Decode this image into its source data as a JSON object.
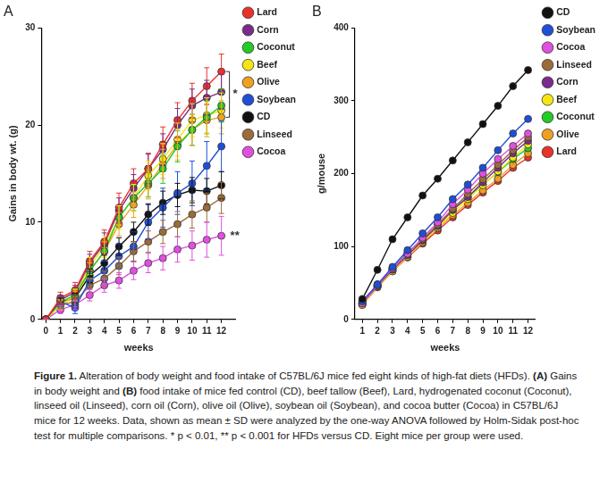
{
  "chart_data": [
    {
      "type": "line",
      "title": "A",
      "x_label": "weeks",
      "y_label": "Gains in body wt. (g)",
      "x": [
        0,
        1,
        2,
        3,
        4,
        5,
        6,
        7,
        8,
        9,
        10,
        11,
        12
      ],
      "xlim": [
        -0.3,
        13
      ],
      "xticks": [
        0,
        1,
        2,
        3,
        4,
        5,
        6,
        7,
        8,
        9,
        10,
        11,
        12
      ],
      "ylim": [
        0,
        30
      ],
      "yticks": [
        0,
        10,
        20,
        30
      ],
      "grid": false,
      "legend": "right",
      "marker": "circle",
      "series": [
        {
          "name": "Lard",
          "color": "#e8322a",
          "values": [
            0,
            2.2,
            3.0,
            6.0,
            8.0,
            11.5,
            14.0,
            15.5,
            18.0,
            20.5,
            22.5,
            24.0,
            25.5
          ],
          "errors": [
            0,
            0.6,
            0.8,
            1.0,
            1.2,
            1.5,
            1.5,
            1.6,
            1.8,
            1.8,
            1.8,
            1.9,
            1.8
          ]
        },
        {
          "name": "Corn",
          "color": "#7b2b8e",
          "values": [
            0,
            2.0,
            2.8,
            5.8,
            7.8,
            11.2,
            13.5,
            15.5,
            17.5,
            20.0,
            22.0,
            22.8,
            23.4
          ],
          "errors": [
            0,
            0.5,
            0.7,
            0.9,
            1.1,
            1.3,
            1.4,
            1.5,
            1.6,
            1.7,
            1.7,
            1.8,
            1.8
          ]
        },
        {
          "name": "Coconut",
          "color": "#22cc22",
          "values": [
            0,
            1.8,
            2.5,
            5.0,
            7.0,
            10.5,
            12.5,
            14.0,
            15.5,
            17.8,
            19.5,
            20.8,
            22.0
          ],
          "errors": [
            0,
            0.5,
            0.6,
            0.8,
            1.0,
            1.2,
            1.3,
            1.4,
            1.5,
            1.6,
            1.6,
            1.7,
            1.7
          ]
        },
        {
          "name": "Beef",
          "color": "#f5e613",
          "values": [
            0,
            1.5,
            2.5,
            5.5,
            7.5,
            10.5,
            12.5,
            14.8,
            16.5,
            18.5,
            20.5,
            21.0,
            21.5
          ],
          "errors": [
            0,
            0.5,
            0.6,
            0.9,
            1.1,
            1.2,
            1.4,
            1.5,
            1.6,
            1.7,
            1.7,
            1.8,
            1.8
          ]
        },
        {
          "name": "Olive",
          "color": "#f0a020",
          "values": [
            0,
            1.5,
            2.3,
            5.0,
            7.0,
            9.8,
            11.8,
            13.8,
            16.0,
            18.0,
            19.5,
            20.5,
            20.8
          ],
          "errors": [
            0,
            0.5,
            0.6,
            0.8,
            1.0,
            1.2,
            1.3,
            1.4,
            1.5,
            1.6,
            1.6,
            1.7,
            1.7
          ]
        },
        {
          "name": "Soybean",
          "color": "#1f4fd6",
          "values": [
            0,
            1.8,
            1.2,
            4.0,
            5.0,
            6.5,
            7.5,
            10.0,
            11.5,
            13.0,
            14.0,
            15.8,
            17.8
          ],
          "errors": [
            0,
            0.5,
            0.6,
            0.9,
            1.0,
            1.3,
            1.5,
            1.8,
            2.0,
            2.2,
            2.3,
            2.5,
            2.6
          ]
        },
        {
          "name": "CD",
          "color": "#111111",
          "values": [
            0,
            1.8,
            2.2,
            4.5,
            5.8,
            7.5,
            9.0,
            10.8,
            12.0,
            12.8,
            13.3,
            13.2,
            13.8
          ],
          "errors": [
            0,
            0.4,
            0.5,
            0.7,
            0.8,
            0.9,
            1.0,
            1.1,
            1.2,
            1.2,
            1.3,
            1.3,
            1.4
          ]
        },
        {
          "name": "Linseed",
          "color": "#9b6b3a",
          "values": [
            0,
            1.5,
            1.8,
            3.5,
            4.2,
            5.5,
            7.0,
            8.0,
            9.0,
            9.8,
            10.8,
            11.5,
            12.5
          ],
          "errors": [
            0,
            0.4,
            0.5,
            0.7,
            0.8,
            0.9,
            1.0,
            1.1,
            1.2,
            1.3,
            1.4,
            1.5,
            1.6
          ]
        },
        {
          "name": "Cocoa",
          "color": "#e050e0",
          "values": [
            0,
            1.0,
            1.5,
            2.5,
            3.5,
            4.0,
            5.0,
            5.8,
            6.3,
            7.2,
            7.6,
            8.2,
            8.6
          ],
          "errors": [
            0,
            0.4,
            0.5,
            0.6,
            0.7,
            0.8,
            0.9,
            1.0,
            1.2,
            1.3,
            1.5,
            1.8,
            2.0
          ]
        }
      ],
      "annotations": [
        {
          "text": "*",
          "x": 12,
          "y": 23.2,
          "bracket": [
            20.8,
            25.5
          ]
        },
        {
          "text": "**",
          "x": 12,
          "y": 8.6
        }
      ]
    },
    {
      "type": "line",
      "title": "B",
      "x_label": "weeks",
      "y_label": "g/mouse",
      "x": [
        1,
        2,
        3,
        4,
        5,
        6,
        7,
        8,
        9,
        10,
        11,
        12
      ],
      "xlim": [
        0.5,
        12.5
      ],
      "xticks": [
        1,
        2,
        3,
        4,
        5,
        6,
        7,
        8,
        9,
        10,
        11,
        12
      ],
      "ylim": [
        0,
        400
      ],
      "yticks": [
        0,
        100,
        200,
        300,
        400
      ],
      "grid": false,
      "legend": "right",
      "marker": "circle",
      "series": [
        {
          "name": "CD",
          "color": "#111111",
          "values": [
            28,
            68,
            110,
            140,
            170,
            193,
            218,
            243,
            268,
            293,
            320,
            342
          ]
        },
        {
          "name": "Soybean",
          "color": "#1f4fd6",
          "values": [
            25,
            48,
            72,
            95,
            118,
            140,
            165,
            185,
            208,
            232,
            255,
            275
          ]
        },
        {
          "name": "Cocoa",
          "color": "#e050e0",
          "values": [
            22,
            47,
            70,
            90,
            112,
            133,
            158,
            178,
            200,
            220,
            238,
            255
          ]
        },
        {
          "name": "Linseed",
          "color": "#9b6b3a",
          "values": [
            25,
            48,
            70,
            90,
            110,
            130,
            152,
            172,
            192,
            212,
            232,
            250
          ]
        },
        {
          "name": "Corn",
          "color": "#7b2b8e",
          "values": [
            22,
            46,
            68,
            88,
            108,
            128,
            150,
            168,
            188,
            208,
            228,
            245
          ]
        },
        {
          "name": "Beef",
          "color": "#f5e613",
          "values": [
            20,
            45,
            66,
            86,
            106,
            126,
            146,
            165,
            184,
            203,
            222,
            240
          ]
        },
        {
          "name": "Coconut",
          "color": "#22cc22",
          "values": [
            22,
            46,
            70,
            92,
            110,
            130,
            150,
            168,
            185,
            202,
            220,
            235
          ]
        },
        {
          "name": "Olive",
          "color": "#f0a020",
          "values": [
            22,
            45,
            68,
            88,
            106,
            125,
            143,
            160,
            177,
            193,
            212,
            228
          ]
        },
        {
          "name": "Lard",
          "color": "#e8322a",
          "values": [
            20,
            44,
            66,
            85,
            104,
            122,
            140,
            157,
            174,
            190,
            208,
            222
          ]
        }
      ]
    }
  ],
  "caption": {
    "label": "Figure 1.",
    "text": "Alteration of body weight and food intake of C57BL/6J mice fed eight kinds of high-fat diets (HFDs). (A) Gains in body weight and (B) food intake of mice fed control (CD), beef tallow (Beef), Lard, hydrogenated coconut (Coconut), linseed oil (Linseed), corn oil (Corn), olive oil (Olive), soybean oil (Soybean), and cocoa butter (Cocoa) in C57BL/6J mice for 12 weeks. Data, shown as mean ± SD were analyzed by the one-way ANOVA followed by Holm-Sidak post-hoc test for multiple comparisons. * p < 0.01, ** p < 0.001 for HFDs versus CD. Eight mice per group were used."
  }
}
